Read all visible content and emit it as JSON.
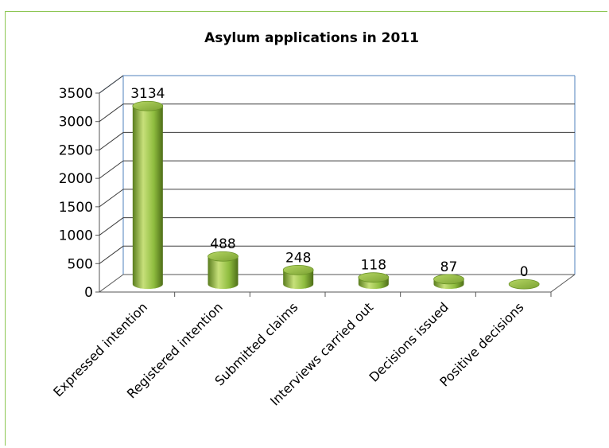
{
  "chart_data": {
    "type": "bar",
    "title": "Asylum applications in 2011",
    "categories": [
      "Expressed intention",
      "Registered intention",
      "Submitted claims",
      "Interviews carried out",
      "Decisions issued",
      "Positive decisions"
    ],
    "values": [
      3134,
      488,
      248,
      118,
      87,
      0
    ],
    "data_labels": [
      "3134",
      "488",
      "248",
      "118",
      "87",
      "0"
    ],
    "y_ticks": [
      "0",
      "500",
      "1000",
      "1500",
      "2000",
      "2500",
      "3000",
      "3500"
    ],
    "ylim": [
      0,
      3500
    ],
    "grid": true,
    "legend": "none",
    "bar_style": "3d-cylinder",
    "colors": {
      "bar_light": "#c7e07a",
      "bar_mid": "#8fbd3f",
      "bar_dark": "#5a7d1e",
      "grid": "#3c3c3c",
      "wall": "#4f81bd",
      "frame": "#8cc653"
    }
  }
}
